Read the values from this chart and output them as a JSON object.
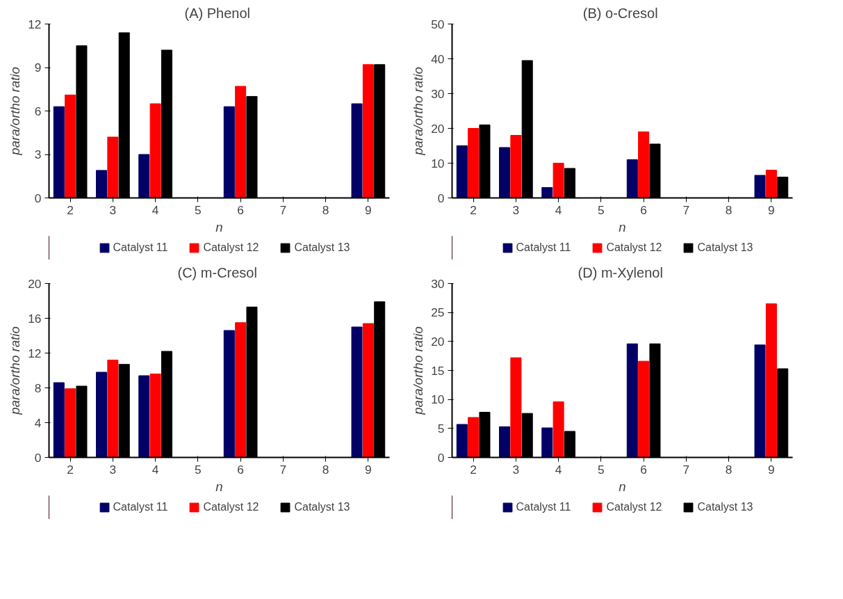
{
  "chart_data": [
    {
      "type": "bar",
      "title": "(A)  Phenol",
      "xlabel": "n",
      "ylabel": "para/ortho ratio",
      "categories": [
        "2",
        "3",
        "4",
        "5",
        "6",
        "7",
        "8",
        "9"
      ],
      "ylim": [
        0,
        12
      ],
      "yticks": [
        0,
        3,
        6,
        9,
        12
      ],
      "grid": false,
      "legend": "bottom",
      "series": [
        {
          "name": "Catalyst 11",
          "color": "#000066",
          "values": [
            6.3,
            1.9,
            3.0,
            null,
            6.3,
            null,
            null,
            6.5
          ]
        },
        {
          "name": "Catalyst 12",
          "color": "#ff0000",
          "values": [
            7.1,
            4.2,
            6.5,
            null,
            7.7,
            null,
            null,
            9.2
          ]
        },
        {
          "name": "Catalyst 13",
          "color": "#000000",
          "values": [
            10.5,
            11.4,
            10.2,
            null,
            7.0,
            null,
            null,
            9.2
          ]
        }
      ]
    },
    {
      "type": "bar",
      "title": "(B)  o-Cresol",
      "xlabel": "n",
      "ylabel": "para/ortho ratio",
      "categories": [
        "2",
        "3",
        "4",
        "5",
        "6",
        "7",
        "8",
        "9"
      ],
      "ylim": [
        0,
        50
      ],
      "yticks": [
        0,
        10,
        20,
        30,
        40,
        50
      ],
      "grid": false,
      "legend": "bottom",
      "series": [
        {
          "name": "Catalyst 11",
          "color": "#000066",
          "values": [
            15,
            14.5,
            3,
            null,
            11,
            null,
            null,
            6.5
          ]
        },
        {
          "name": "Catalyst 12",
          "color": "#ff0000",
          "values": [
            20,
            18,
            10,
            null,
            19,
            null,
            null,
            8
          ]
        },
        {
          "name": "Catalyst 13",
          "color": "#000000",
          "values": [
            21,
            39.5,
            8.5,
            null,
            15.5,
            null,
            null,
            6
          ]
        }
      ]
    },
    {
      "type": "bar",
      "title": "(C)  m-Cresol",
      "xlabel": "n",
      "ylabel": "para/ortho ratio",
      "categories": [
        "2",
        "3",
        "4",
        "5",
        "6",
        "7",
        "8",
        "9"
      ],
      "ylim": [
        0,
        20
      ],
      "yticks": [
        0,
        4,
        8,
        12,
        16,
        20
      ],
      "grid": false,
      "legend": "bottom",
      "series": [
        {
          "name": "Catalyst 11",
          "color": "#000066",
          "values": [
            8.6,
            9.8,
            9.4,
            null,
            14.6,
            null,
            null,
            15.0
          ]
        },
        {
          "name": "Catalyst 12",
          "color": "#ff0000",
          "values": [
            7.9,
            11.2,
            9.6,
            null,
            15.5,
            null,
            null,
            15.4
          ]
        },
        {
          "name": "Catalyst 13",
          "color": "#000000",
          "values": [
            8.2,
            10.7,
            12.2,
            null,
            17.3,
            null,
            null,
            17.9
          ]
        }
      ]
    },
    {
      "type": "bar",
      "title": "(D)  m-Xylenol",
      "xlabel": "n",
      "ylabel": "para/ortho ratio",
      "categories": [
        "2",
        "3",
        "4",
        "5",
        "6",
        "7",
        "8",
        "9"
      ],
      "ylim": [
        0,
        30
      ],
      "yticks": [
        0,
        5,
        10,
        15,
        20,
        25,
        30
      ],
      "grid": false,
      "legend": "bottom",
      "series": [
        {
          "name": "Catalyst 11",
          "color": "#000066",
          "values": [
            5.7,
            5.3,
            5.1,
            null,
            19.6,
            null,
            null,
            19.4
          ]
        },
        {
          "name": "Catalyst 12",
          "color": "#ff0000",
          "values": [
            6.9,
            17.2,
            9.6,
            null,
            16.6,
            null,
            null,
            26.5
          ]
        },
        {
          "name": "Catalyst 13",
          "color": "#000000",
          "values": [
            7.8,
            7.6,
            4.5,
            null,
            19.6,
            null,
            null,
            15.3
          ]
        }
      ]
    }
  ]
}
